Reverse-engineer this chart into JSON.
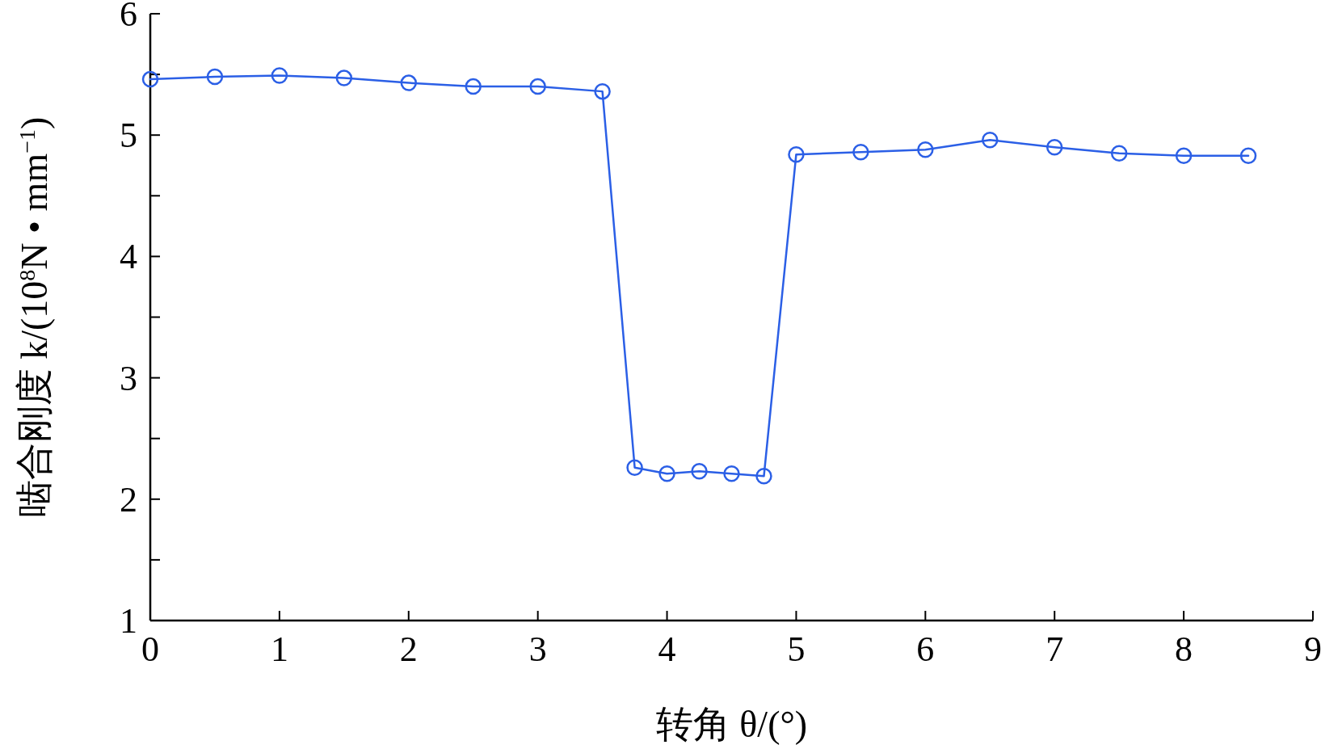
{
  "chart_data": {
    "type": "line",
    "xlabel": "转角 θ/(°)",
    "ylabel": "啮合刚度 k/(10$^{8}$N • mm$^{−1}$)",
    "x": [
      0,
      0.5,
      1,
      1.5,
      2,
      2.5,
      3,
      3.5,
      3.75,
      4,
      4.25,
      4.5,
      4.75,
      5,
      5.5,
      6,
      6.5,
      7,
      7.5,
      8,
      8.5
    ],
    "series": [
      {
        "color": "#2b5fe6",
        "values": [
          5.46,
          5.48,
          5.49,
          5.47,
          5.43,
          5.4,
          5.4,
          5.36,
          2.26,
          2.21,
          2.23,
          2.21,
          2.19,
          4.84,
          4.86,
          4.88,
          4.96,
          4.9,
          4.85,
          4.83,
          4.83
        ]
      }
    ],
    "xlim": [
      0,
      9
    ],
    "ylim": [
      1,
      6
    ],
    "xticks": [
      0,
      1,
      2,
      3,
      4,
      5,
      6,
      7,
      8,
      9
    ],
    "yticks": [
      1,
      {
        "value": 1.5,
        "label": null
      },
      2,
      {
        "value": 2.5,
        "label": null
      },
      3,
      {
        "value": 3.5,
        "label": null
      },
      4,
      {
        "value": 4.5,
        "label": null
      },
      5,
      {
        "value": 5.5,
        "label": null
      },
      6
    ],
    "marker": "circle",
    "line_style": "solid"
  }
}
